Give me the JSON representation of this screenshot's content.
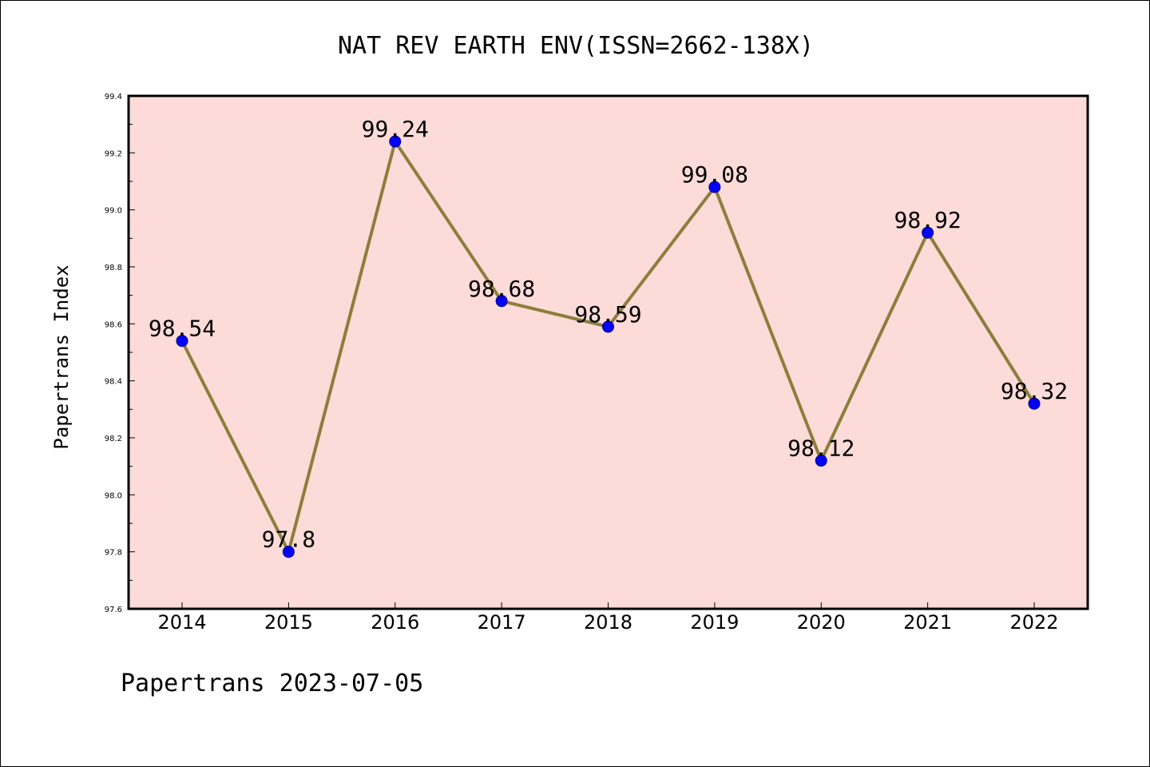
{
  "chart_data": {
    "type": "line",
    "title": "NAT REV EARTH ENV(ISSN=2662-138X)",
    "xlabel": "",
    "ylabel": "Papertrans Index",
    "categories": [
      "2014",
      "2015",
      "2016",
      "2017",
      "2018",
      "2019",
      "2020",
      "2021",
      "2022"
    ],
    "series": [
      {
        "values": [
          98.54,
          97.8,
          99.24,
          98.68,
          98.59,
          99.08,
          98.12,
          98.92,
          98.32
        ],
        "labels": [
          "98.54",
          "97.8",
          "99.24",
          "98.68",
          "98.59",
          "99.08",
          "98.12",
          "98.92",
          "98.32"
        ]
      }
    ],
    "ylim": [
      97.6,
      99.4
    ],
    "yticks": [
      "97.6",
      "97.8",
      "98.0",
      "98.2",
      "98.4",
      "98.6",
      "98.8",
      "99.0",
      "99.2",
      "99.4"
    ],
    "grid": false,
    "colors": {
      "plot_background": "#fddbd8",
      "line": "#8c7e3c",
      "marker_fill": "#0000ff",
      "marker_edge": "#000080"
    }
  },
  "footer_text": "Papertrans 2023-07-05"
}
